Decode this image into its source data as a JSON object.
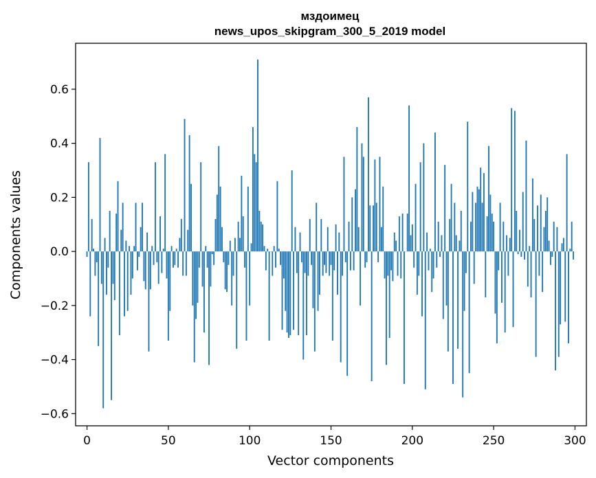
{
  "chart_data": {
    "type": "bar",
    "title_line1": "мздоимец",
    "title_line2": "news_upos_skipgram_300_5_2019 model",
    "xlabel": "Vector components",
    "ylabel": "Components values",
    "xlim": [
      -7,
      307
    ],
    "ylim": [
      -0.645,
      0.77
    ],
    "xticks": [
      0,
      50,
      100,
      150,
      200,
      250,
      300
    ],
    "xtick_labels": [
      "0",
      "50",
      "100",
      "150",
      "200",
      "250",
      "300"
    ],
    "yticks": [
      -0.6,
      -0.4,
      -0.2,
      0.0,
      0.2,
      0.4,
      0.6
    ],
    "ytick_labels": [
      "−0.6",
      "−0.4",
      "−0.2",
      "0.0",
      "0.2",
      "0.4",
      "0.6"
    ],
    "bar_color": "#1f77b4",
    "n_components": 300,
    "values": [
      -0.02,
      0.33,
      -0.24,
      0.12,
      0.01,
      -0.09,
      -0.04,
      -0.35,
      0.42,
      -0.12,
      -0.58,
      0.05,
      -0.16,
      -0.06,
      0.15,
      -0.55,
      -0.12,
      -0.18,
      0.14,
      0.26,
      -0.31,
      0.08,
      0.18,
      -0.24,
      0.04,
      -0.22,
      0.02,
      -0.16,
      -0.1,
      0.02,
      0.18,
      -0.07,
      -0.02,
      0.09,
      0.18,
      -0.11,
      -0.14,
      0.07,
      -0.37,
      -0.14,
      0.02,
      -0.05,
      0.33,
      -0.04,
      -0.12,
      0.13,
      -0.08,
      0.01,
      0.36,
      -0.1,
      -0.33,
      -0.22,
      0.02,
      -0.06,
      -0.05,
      0.01,
      -0.06,
      0.05,
      0.12,
      -0.09,
      0.49,
      -0.09,
      0.08,
      0.43,
      0.25,
      -0.2,
      -0.41,
      -0.25,
      -0.19,
      -0.06,
      0.33,
      -0.13,
      -0.3,
      0.02,
      -0.06,
      -0.42,
      -0.13,
      -0.01,
      -0.05,
      0.12,
      0.21,
      0.39,
      0.24,
      0.09,
      -0.04,
      -0.14,
      -0.15,
      -0.05,
      0.04,
      -0.2,
      -0.09,
      0.05,
      -0.36,
      0.11,
      0.05,
      0.28,
      0.13,
      -0.06,
      -0.33,
      0.24,
      -0.2,
      0.03,
      0.46,
      0.36,
      0.33,
      0.71,
      0.15,
      0.11,
      0.1,
      0.02,
      -0.07,
      0.01,
      -0.33,
      0.0,
      -0.09,
      0.02,
      -0.06,
      0.26,
      0.01,
      -0.05,
      -0.29,
      -0.1,
      -0.22,
      -0.3,
      -0.32,
      -0.31,
      0.3,
      -0.29,
      0.09,
      -0.08,
      -0.31,
      0.07,
      -0.04,
      -0.4,
      -0.08,
      -0.31,
      -0.09,
      0.12,
      -0.05,
      -0.21,
      -0.37,
      0.18,
      -0.22,
      -0.16,
      0.12,
      -0.09,
      -0.05,
      -0.08,
      0.09,
      -0.09,
      -0.05,
      -0.33,
      -0.07,
      0.1,
      -0.16,
      0.07,
      -0.41,
      -0.09,
      0.35,
      -0.04,
      -0.46,
      0.11,
      -0.07,
      0.2,
      -0.07,
      0.23,
      0.46,
      0.09,
      -0.2,
      0.4,
      0.35,
      -0.06,
      -0.04,
      0.57,
      0.17,
      -0.48,
      0.17,
      0.34,
      0.18,
      -0.04,
      0.35,
      0.09,
      0.24,
      -0.1,
      -0.42,
      -0.09,
      -0.32,
      -0.07,
      -0.11,
      0.07,
      0.04,
      -0.09,
      0.13,
      -0.1,
      0.14,
      -0.49,
      0.0,
      0.14,
      0.54,
      0.06,
      0.1,
      -0.06,
      0.25,
      -0.16,
      -0.09,
      0.33,
      -0.24,
      0.4,
      -0.51,
      0.07,
      -0.07,
      0.01,
      -0.15,
      -0.1,
      0.44,
      -0.06,
      0.11,
      -0.02,
      0.06,
      -0.25,
      0.32,
      -0.2,
      -0.37,
      0.12,
      0.25,
      -0.49,
      0.18,
      0.06,
      -0.36,
      0.04,
      0.15,
      -0.54,
      -0.22,
      -0.08,
      0.48,
      -0.45,
      0.11,
      0.22,
      -0.12,
      0.18,
      0.24,
      0.23,
      0.31,
      0.18,
      0.29,
      -0.17,
      0.13,
      0.39,
      0.21,
      0.14,
      0.11,
      -0.23,
      -0.34,
      -0.07,
      0.18,
      -0.19,
      0.11,
      -0.3,
      0.06,
      -0.09,
      0.05,
      0.53,
      -0.28,
      0.52,
      0.15,
      -0.01,
      0.08,
      -0.02,
      0.22,
      -0.03,
      0.41,
      -0.13,
      0.02,
      -0.17,
      0.27,
      0.12,
      -0.39,
      0.17,
      -0.09,
      0.21,
      -0.15,
      0.09,
      0.15,
      0.2,
      0.04,
      -0.05,
      -0.02,
      0.11,
      -0.44,
      0.09,
      -0.39,
      -0.27,
      0.03,
      0.05,
      -0.26,
      0.36,
      -0.34,
      0.01,
      0.11,
      -0.03
    ]
  }
}
